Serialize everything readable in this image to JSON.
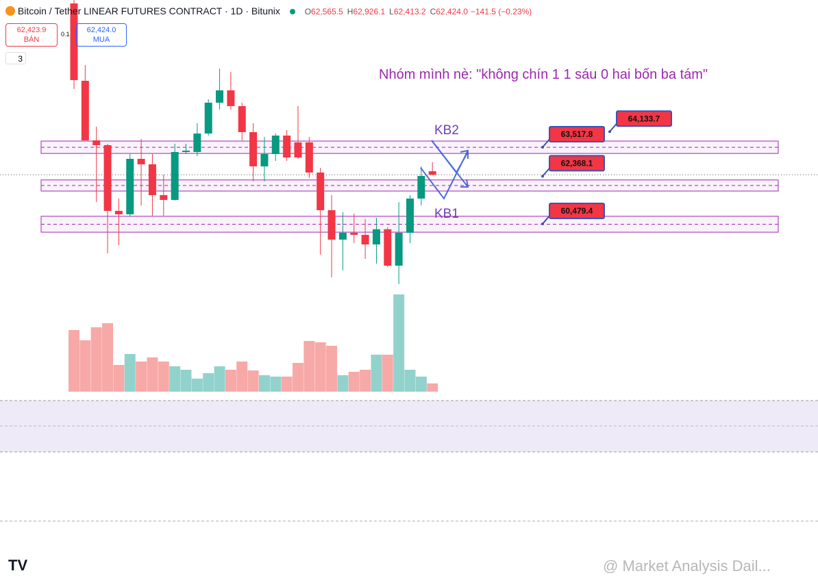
{
  "header": {
    "title": "Bitcoin / Tether LINEAR FUTURES CONTRACT · 1D · Bitunix",
    "ohlc": [
      {
        "key": "O",
        "value": "62,565.5"
      },
      {
        "key": "H",
        "value": "62,926.1"
      },
      {
        "key": "L",
        "value": "62,413.2"
      },
      {
        "key": "C",
        "value": "62,424.0"
      }
    ],
    "change": "−141.5 (−0.23%)"
  },
  "trade": {
    "sell_price": "62,423.9",
    "sell_label": "BÁN",
    "spread": "0.1",
    "buy_price": "62,424.0",
    "buy_label": "MUA",
    "indicator_count": "3"
  },
  "chart_data": {
    "type": "candlestick",
    "annotation": "Nhóm mình nè: \"không chín 1 1 sáu 0 hai bốn ba tám\"",
    "open": [
      69214,
      66149,
      63788,
      63598,
      60994,
      60858,
      63056,
      62839,
      61618,
      61428,
      63327,
      63327,
      64060,
      65281,
      65769,
      65145,
      64114,
      62758,
      63246,
      63978,
      63707,
      63707,
      62513,
      61021,
      59855,
      60126,
      60045,
      59665,
      60265,
      58824,
      60126,
      61482,
      62565.5
    ],
    "high": [
      69350,
      66773,
      64331,
      63653,
      61482,
      63246,
      63843,
      63246,
      62432,
      63653,
      63653,
      64467,
      65416,
      66637,
      66501,
      65281,
      64467,
      63924,
      64060,
      64195,
      65145,
      63924,
      62703,
      61618,
      60940,
      60886,
      60668,
      60723,
      60343,
      61347,
      61618,
      62758,
      62926.1
    ],
    "low": [
      65823,
      63788,
      61347,
      59312,
      59637,
      60777,
      61211,
      60804,
      60804,
      61401,
      63246,
      63164,
      63978,
      65009,
      65009,
      63788,
      62160,
      62160,
      62974,
      62974,
      63056,
      62296,
      59258,
      58362,
      58634,
      59719,
      59095,
      58905,
      58769,
      58091,
      59719,
      61211,
      62413.2
    ],
    "close": [
      66176,
      63788,
      63598,
      60994,
      60858,
      63056,
      62839,
      61618,
      61428,
      63327,
      63381,
      64060,
      65281,
      65769,
      65145,
      64114,
      62758,
      63246,
      63978,
      63110,
      63110,
      62513,
      61021,
      59855,
      60126,
      60045,
      59665,
      60265,
      58824,
      60126,
      61482,
      62378,
      62424.0
    ],
    "volume": [
      90,
      75,
      94,
      100,
      39,
      55,
      44,
      50,
      44,
      37,
      32,
      19,
      27,
      37,
      32,
      44,
      31,
      24,
      22,
      22,
      42,
      74,
      72,
      67,
      24,
      29,
      32,
      54,
      54,
      142,
      32,
      22,
      12
    ],
    "ylim": [
      57955,
      69350
    ],
    "volume_lim": [
      0,
      150
    ],
    "zones": [
      [
        63760,
        63270
      ],
      [
        62220,
        61780
      ],
      [
        60780,
        60150
      ]
    ],
    "levels": [
      {
        "value": 63517.8,
        "label": "63,517.8"
      },
      {
        "value": 62368.1,
        "label": "62,368.1"
      },
      {
        "value": 60479.4,
        "label": "60,479.4"
      },
      {
        "value": 64133.7,
        "label": "64,133.7"
      }
    ],
    "kb_labels": [
      "KB2",
      "KB1"
    ],
    "up_color": "#089981",
    "down_color": "#f23645",
    "volume_up_color": "#92d2cc",
    "volume_down_color": "#f7a9a7",
    "zone_color": "#9c27b0"
  },
  "watermark": "@ Market Analysis Dail..."
}
